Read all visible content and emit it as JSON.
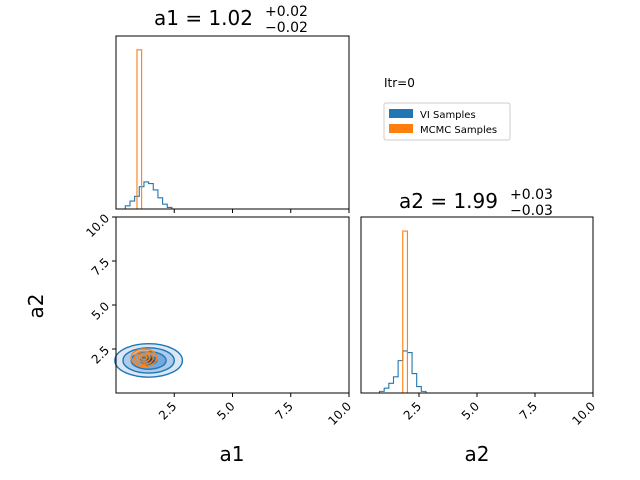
{
  "chart_data": {
    "type": "corner",
    "iteration_label": "Itr=0",
    "colors": {
      "vi": "#1f77b4",
      "mcmc": "#ff7f0e"
    },
    "legend": [
      {
        "name": "VI Samples",
        "color": "#1f77b4"
      },
      {
        "name": "MCMC Samples",
        "color": "#ff7f0e"
      }
    ],
    "params": [
      "a1",
      "a2"
    ],
    "axis_range": [
      0,
      10
    ],
    "ticks": [
      {
        "value": 2.5,
        "label": "2.5"
      },
      {
        "value": 5.0,
        "label": "5.0"
      },
      {
        "value": 7.5,
        "label": "7.5"
      },
      {
        "value": 10.0,
        "label": "10.0"
      }
    ],
    "titles": [
      {
        "param": "a1",
        "main": "a1 = 1.02",
        "upper": "+0.02",
        "lower": "−0.02"
      },
      {
        "param": "a2",
        "main": "a2 = 1.99",
        "upper": "+0.03",
        "lower": "−0.03"
      }
    ],
    "hist_a1": {
      "bin_width": 0.2,
      "vi": [
        [
          0.4,
          0.02
        ],
        [
          0.6,
          0.05
        ],
        [
          0.8,
          0.08
        ],
        [
          1.0,
          0.14
        ],
        [
          1.2,
          0.17
        ],
        [
          1.4,
          0.16
        ],
        [
          1.6,
          0.12
        ],
        [
          1.8,
          0.07
        ],
        [
          2.0,
          0.03
        ],
        [
          2.2,
          0.01
        ]
      ],
      "mcmc": [
        [
          0.9,
          1.0
        ],
        [
          1.1,
          0.0
        ]
      ]
    },
    "hist_a2": {
      "bin_width": 0.2,
      "vi": [
        [
          0.8,
          0.01
        ],
        [
          1.0,
          0.03
        ],
        [
          1.2,
          0.06
        ],
        [
          1.4,
          0.1
        ],
        [
          1.6,
          0.2
        ],
        [
          1.8,
          0.26
        ],
        [
          2.0,
          0.25
        ],
        [
          2.2,
          0.12
        ],
        [
          2.4,
          0.04
        ],
        [
          2.6,
          0.01
        ]
      ],
      "mcmc": [
        [
          1.8,
          1.0
        ],
        [
          2.0,
          0.0
        ]
      ]
    },
    "joint": {
      "vi_center": [
        1.4,
        1.85
      ],
      "vi_contours": [
        [
          1.45,
          0.95
        ],
        [
          1.1,
          0.72
        ],
        [
          0.75,
          0.5
        ],
        [
          0.35,
          0.25
        ]
      ],
      "mcmc_center": [
        1.2,
        2.0
      ],
      "mcmc_contours": [
        [
          0.55,
          0.5
        ],
        [
          0.4,
          0.37
        ],
        [
          0.25,
          0.24
        ],
        [
          0.12,
          0.12
        ]
      ]
    }
  }
}
